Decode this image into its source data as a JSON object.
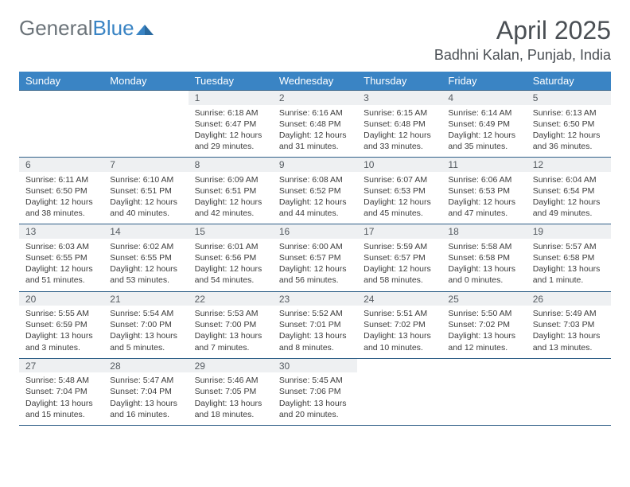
{
  "branding": {
    "logo_general": "General",
    "logo_blue": "Blue",
    "logo_color_gray": "#6b7379",
    "logo_color_blue": "#3a84c4"
  },
  "header": {
    "month_title": "April 2025",
    "location": "Badhni Kalan, Punjab, India"
  },
  "calendar": {
    "day_headers": [
      "Sunday",
      "Monday",
      "Tuesday",
      "Wednesday",
      "Thursday",
      "Friday",
      "Saturday"
    ],
    "header_bg": "#3a84c4",
    "header_fg": "#ffffff",
    "daynum_bg": "#eef0f2",
    "rule_color": "#2f5f87",
    "text_color": "#3c3c3c",
    "font_size_cell": 10.5,
    "weeks": [
      {
        "days": [
          {
            "num": "",
            "sunrise": "",
            "sunset": "",
            "daylight": ""
          },
          {
            "num": "",
            "sunrise": "",
            "sunset": "",
            "daylight": ""
          },
          {
            "num": "1",
            "sunrise": "Sunrise: 6:18 AM",
            "sunset": "Sunset: 6:47 PM",
            "daylight": "Daylight: 12 hours and 29 minutes."
          },
          {
            "num": "2",
            "sunrise": "Sunrise: 6:16 AM",
            "sunset": "Sunset: 6:48 PM",
            "daylight": "Daylight: 12 hours and 31 minutes."
          },
          {
            "num": "3",
            "sunrise": "Sunrise: 6:15 AM",
            "sunset": "Sunset: 6:48 PM",
            "daylight": "Daylight: 12 hours and 33 minutes."
          },
          {
            "num": "4",
            "sunrise": "Sunrise: 6:14 AM",
            "sunset": "Sunset: 6:49 PM",
            "daylight": "Daylight: 12 hours and 35 minutes."
          },
          {
            "num": "5",
            "sunrise": "Sunrise: 6:13 AM",
            "sunset": "Sunset: 6:50 PM",
            "daylight": "Daylight: 12 hours and 36 minutes."
          }
        ]
      },
      {
        "days": [
          {
            "num": "6",
            "sunrise": "Sunrise: 6:11 AM",
            "sunset": "Sunset: 6:50 PM",
            "daylight": "Daylight: 12 hours and 38 minutes."
          },
          {
            "num": "7",
            "sunrise": "Sunrise: 6:10 AM",
            "sunset": "Sunset: 6:51 PM",
            "daylight": "Daylight: 12 hours and 40 minutes."
          },
          {
            "num": "8",
            "sunrise": "Sunrise: 6:09 AM",
            "sunset": "Sunset: 6:51 PM",
            "daylight": "Daylight: 12 hours and 42 minutes."
          },
          {
            "num": "9",
            "sunrise": "Sunrise: 6:08 AM",
            "sunset": "Sunset: 6:52 PM",
            "daylight": "Daylight: 12 hours and 44 minutes."
          },
          {
            "num": "10",
            "sunrise": "Sunrise: 6:07 AM",
            "sunset": "Sunset: 6:53 PM",
            "daylight": "Daylight: 12 hours and 45 minutes."
          },
          {
            "num": "11",
            "sunrise": "Sunrise: 6:06 AM",
            "sunset": "Sunset: 6:53 PM",
            "daylight": "Daylight: 12 hours and 47 minutes."
          },
          {
            "num": "12",
            "sunrise": "Sunrise: 6:04 AM",
            "sunset": "Sunset: 6:54 PM",
            "daylight": "Daylight: 12 hours and 49 minutes."
          }
        ]
      },
      {
        "days": [
          {
            "num": "13",
            "sunrise": "Sunrise: 6:03 AM",
            "sunset": "Sunset: 6:55 PM",
            "daylight": "Daylight: 12 hours and 51 minutes."
          },
          {
            "num": "14",
            "sunrise": "Sunrise: 6:02 AM",
            "sunset": "Sunset: 6:55 PM",
            "daylight": "Daylight: 12 hours and 53 minutes."
          },
          {
            "num": "15",
            "sunrise": "Sunrise: 6:01 AM",
            "sunset": "Sunset: 6:56 PM",
            "daylight": "Daylight: 12 hours and 54 minutes."
          },
          {
            "num": "16",
            "sunrise": "Sunrise: 6:00 AM",
            "sunset": "Sunset: 6:57 PM",
            "daylight": "Daylight: 12 hours and 56 minutes."
          },
          {
            "num": "17",
            "sunrise": "Sunrise: 5:59 AM",
            "sunset": "Sunset: 6:57 PM",
            "daylight": "Daylight: 12 hours and 58 minutes."
          },
          {
            "num": "18",
            "sunrise": "Sunrise: 5:58 AM",
            "sunset": "Sunset: 6:58 PM",
            "daylight": "Daylight: 13 hours and 0 minutes."
          },
          {
            "num": "19",
            "sunrise": "Sunrise: 5:57 AM",
            "sunset": "Sunset: 6:58 PM",
            "daylight": "Daylight: 13 hours and 1 minute."
          }
        ]
      },
      {
        "days": [
          {
            "num": "20",
            "sunrise": "Sunrise: 5:55 AM",
            "sunset": "Sunset: 6:59 PM",
            "daylight": "Daylight: 13 hours and 3 minutes."
          },
          {
            "num": "21",
            "sunrise": "Sunrise: 5:54 AM",
            "sunset": "Sunset: 7:00 PM",
            "daylight": "Daylight: 13 hours and 5 minutes."
          },
          {
            "num": "22",
            "sunrise": "Sunrise: 5:53 AM",
            "sunset": "Sunset: 7:00 PM",
            "daylight": "Daylight: 13 hours and 7 minutes."
          },
          {
            "num": "23",
            "sunrise": "Sunrise: 5:52 AM",
            "sunset": "Sunset: 7:01 PM",
            "daylight": "Daylight: 13 hours and 8 minutes."
          },
          {
            "num": "24",
            "sunrise": "Sunrise: 5:51 AM",
            "sunset": "Sunset: 7:02 PM",
            "daylight": "Daylight: 13 hours and 10 minutes."
          },
          {
            "num": "25",
            "sunrise": "Sunrise: 5:50 AM",
            "sunset": "Sunset: 7:02 PM",
            "daylight": "Daylight: 13 hours and 12 minutes."
          },
          {
            "num": "26",
            "sunrise": "Sunrise: 5:49 AM",
            "sunset": "Sunset: 7:03 PM",
            "daylight": "Daylight: 13 hours and 13 minutes."
          }
        ]
      },
      {
        "days": [
          {
            "num": "27",
            "sunrise": "Sunrise: 5:48 AM",
            "sunset": "Sunset: 7:04 PM",
            "daylight": "Daylight: 13 hours and 15 minutes."
          },
          {
            "num": "28",
            "sunrise": "Sunrise: 5:47 AM",
            "sunset": "Sunset: 7:04 PM",
            "daylight": "Daylight: 13 hours and 16 minutes."
          },
          {
            "num": "29",
            "sunrise": "Sunrise: 5:46 AM",
            "sunset": "Sunset: 7:05 PM",
            "daylight": "Daylight: 13 hours and 18 minutes."
          },
          {
            "num": "30",
            "sunrise": "Sunrise: 5:45 AM",
            "sunset": "Sunset: 7:06 PM",
            "daylight": "Daylight: 13 hours and 20 minutes."
          },
          {
            "num": "",
            "sunrise": "",
            "sunset": "",
            "daylight": ""
          },
          {
            "num": "",
            "sunrise": "",
            "sunset": "",
            "daylight": ""
          },
          {
            "num": "",
            "sunrise": "",
            "sunset": "",
            "daylight": ""
          }
        ]
      }
    ]
  }
}
